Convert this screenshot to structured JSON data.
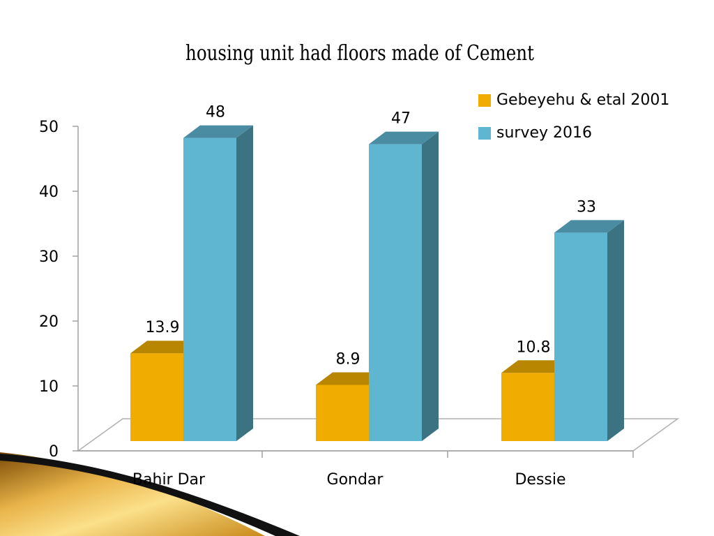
{
  "chart_data": {
    "type": "bar",
    "title": "housing unit had floors made of Cement",
    "categories": [
      "Bahir Dar",
      "Gondar",
      "Dessie"
    ],
    "series": [
      {
        "name": "Gebeyehu & etal 2001",
        "values": [
          13.9,
          8.9,
          10.8
        ],
        "color": "#F0AC00",
        "top_color": "#B88600",
        "side_color": "#9A7000"
      },
      {
        "name": "survey 2016",
        "values": [
          48,
          47,
          33
        ],
        "color": "#5FB6D0",
        "top_color": "#4A8CA2",
        "side_color": "#3C7382"
      }
    ],
    "yticks": [
      "0",
      "10",
      "20",
      "30",
      "40",
      "50"
    ],
    "ylim": [
      0,
      50
    ],
    "grid": false,
    "legend": "top-right",
    "data_labels": true,
    "style": "3d-column"
  }
}
